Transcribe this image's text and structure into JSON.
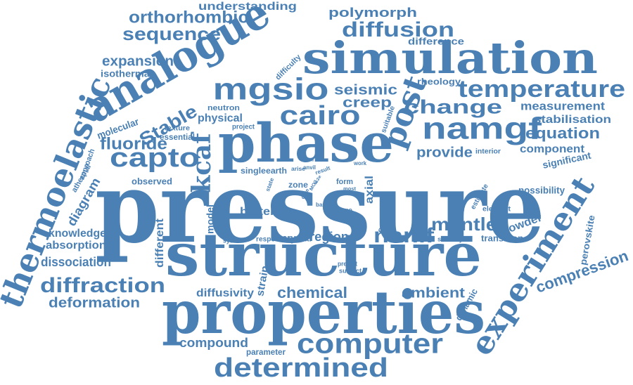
{
  "color": "#4a80b4",
  "background": "#ffffff",
  "words": {
    "pressure": "pressure",
    "structure": "structure",
    "properties": "properties",
    "phase": "phase",
    "simulation": "simulation",
    "analogue": "analogue",
    "thermoelastic": "thermoelastic",
    "experiment": "experiment",
    "mgsio": "mgsio",
    "cairo": "cairo",
    "namgf": "namgf",
    "temperature": "temperature",
    "post": "post",
    "computer": "computer",
    "determined": "determined",
    "diffraction": "diffraction",
    "capto": "capto",
    "kcaf": "kcaf",
    "change": "change",
    "diffusion": "diffusion",
    "sequence": "sequence",
    "orthorhombic": "orthorhombic",
    "understanding": "understanding",
    "polymorph": "polymorph",
    "difference": "difference",
    "expansion": "expansion",
    "isothermal": "isothermal",
    "seismic": "seismic",
    "creep": "creep",
    "rheology": "rheology",
    "measurement": "measurement",
    "stabilisation": "stabilisation",
    "equation": "equation",
    "component": "component",
    "provide": "provide",
    "interior": "interior",
    "significant": "significant",
    "stable": "Stable",
    "fluoride": "fluoride",
    "molecular": "molecular",
    "essential": "essential",
    "physical": "physical",
    "neutron": "neutron",
    "texture": "texture",
    "project": "project",
    "difficulty": "difficulty",
    "suitable": "suitable",
    "approach": "approach",
    "athermal": "athermal",
    "diagram": "diagram",
    "observed": "observed",
    "single": "single",
    "earth": "earth",
    "arise": "arise",
    "anvil": "anvil",
    "result": "result",
    "work": "work",
    "good": "good",
    "state": "state",
    "form": "form",
    "most": "most",
    "zone": "zone",
    "core": "core",
    "mgo": "MO2",
    "lesser": "le2e",
    "base": "base",
    "axial": "axial",
    "range": "range",
    "mbar": "mbar",
    "major": "major",
    "better": "better",
    "model": "model",
    "different": "different",
    "knowledge": "knowledge",
    "absorption": "absorption",
    "dissociation": "dissociation",
    "system": "system",
    "respect": "respect",
    "crystal": "crystal",
    "region": "region",
    "nanif": "nanif",
    "mantle": "mantle",
    "occur": "occur",
    "powder": "powder",
    "possibility": "possibility",
    "estimate": "estimate",
    "element": "element",
    "perovskite": "perovskite",
    "stability": "stability",
    "transition": "transition",
    "predict": "predict",
    "subject": "subject",
    "strain": "strain",
    "chemical": "chemical",
    "ambient": "ambient",
    "dynamic": "dynamic",
    "compression": "compression",
    "diffusivity": "diffusivity",
    "deformation": "deformation",
    "compound": "compound",
    "parameter": "parameter"
  }
}
